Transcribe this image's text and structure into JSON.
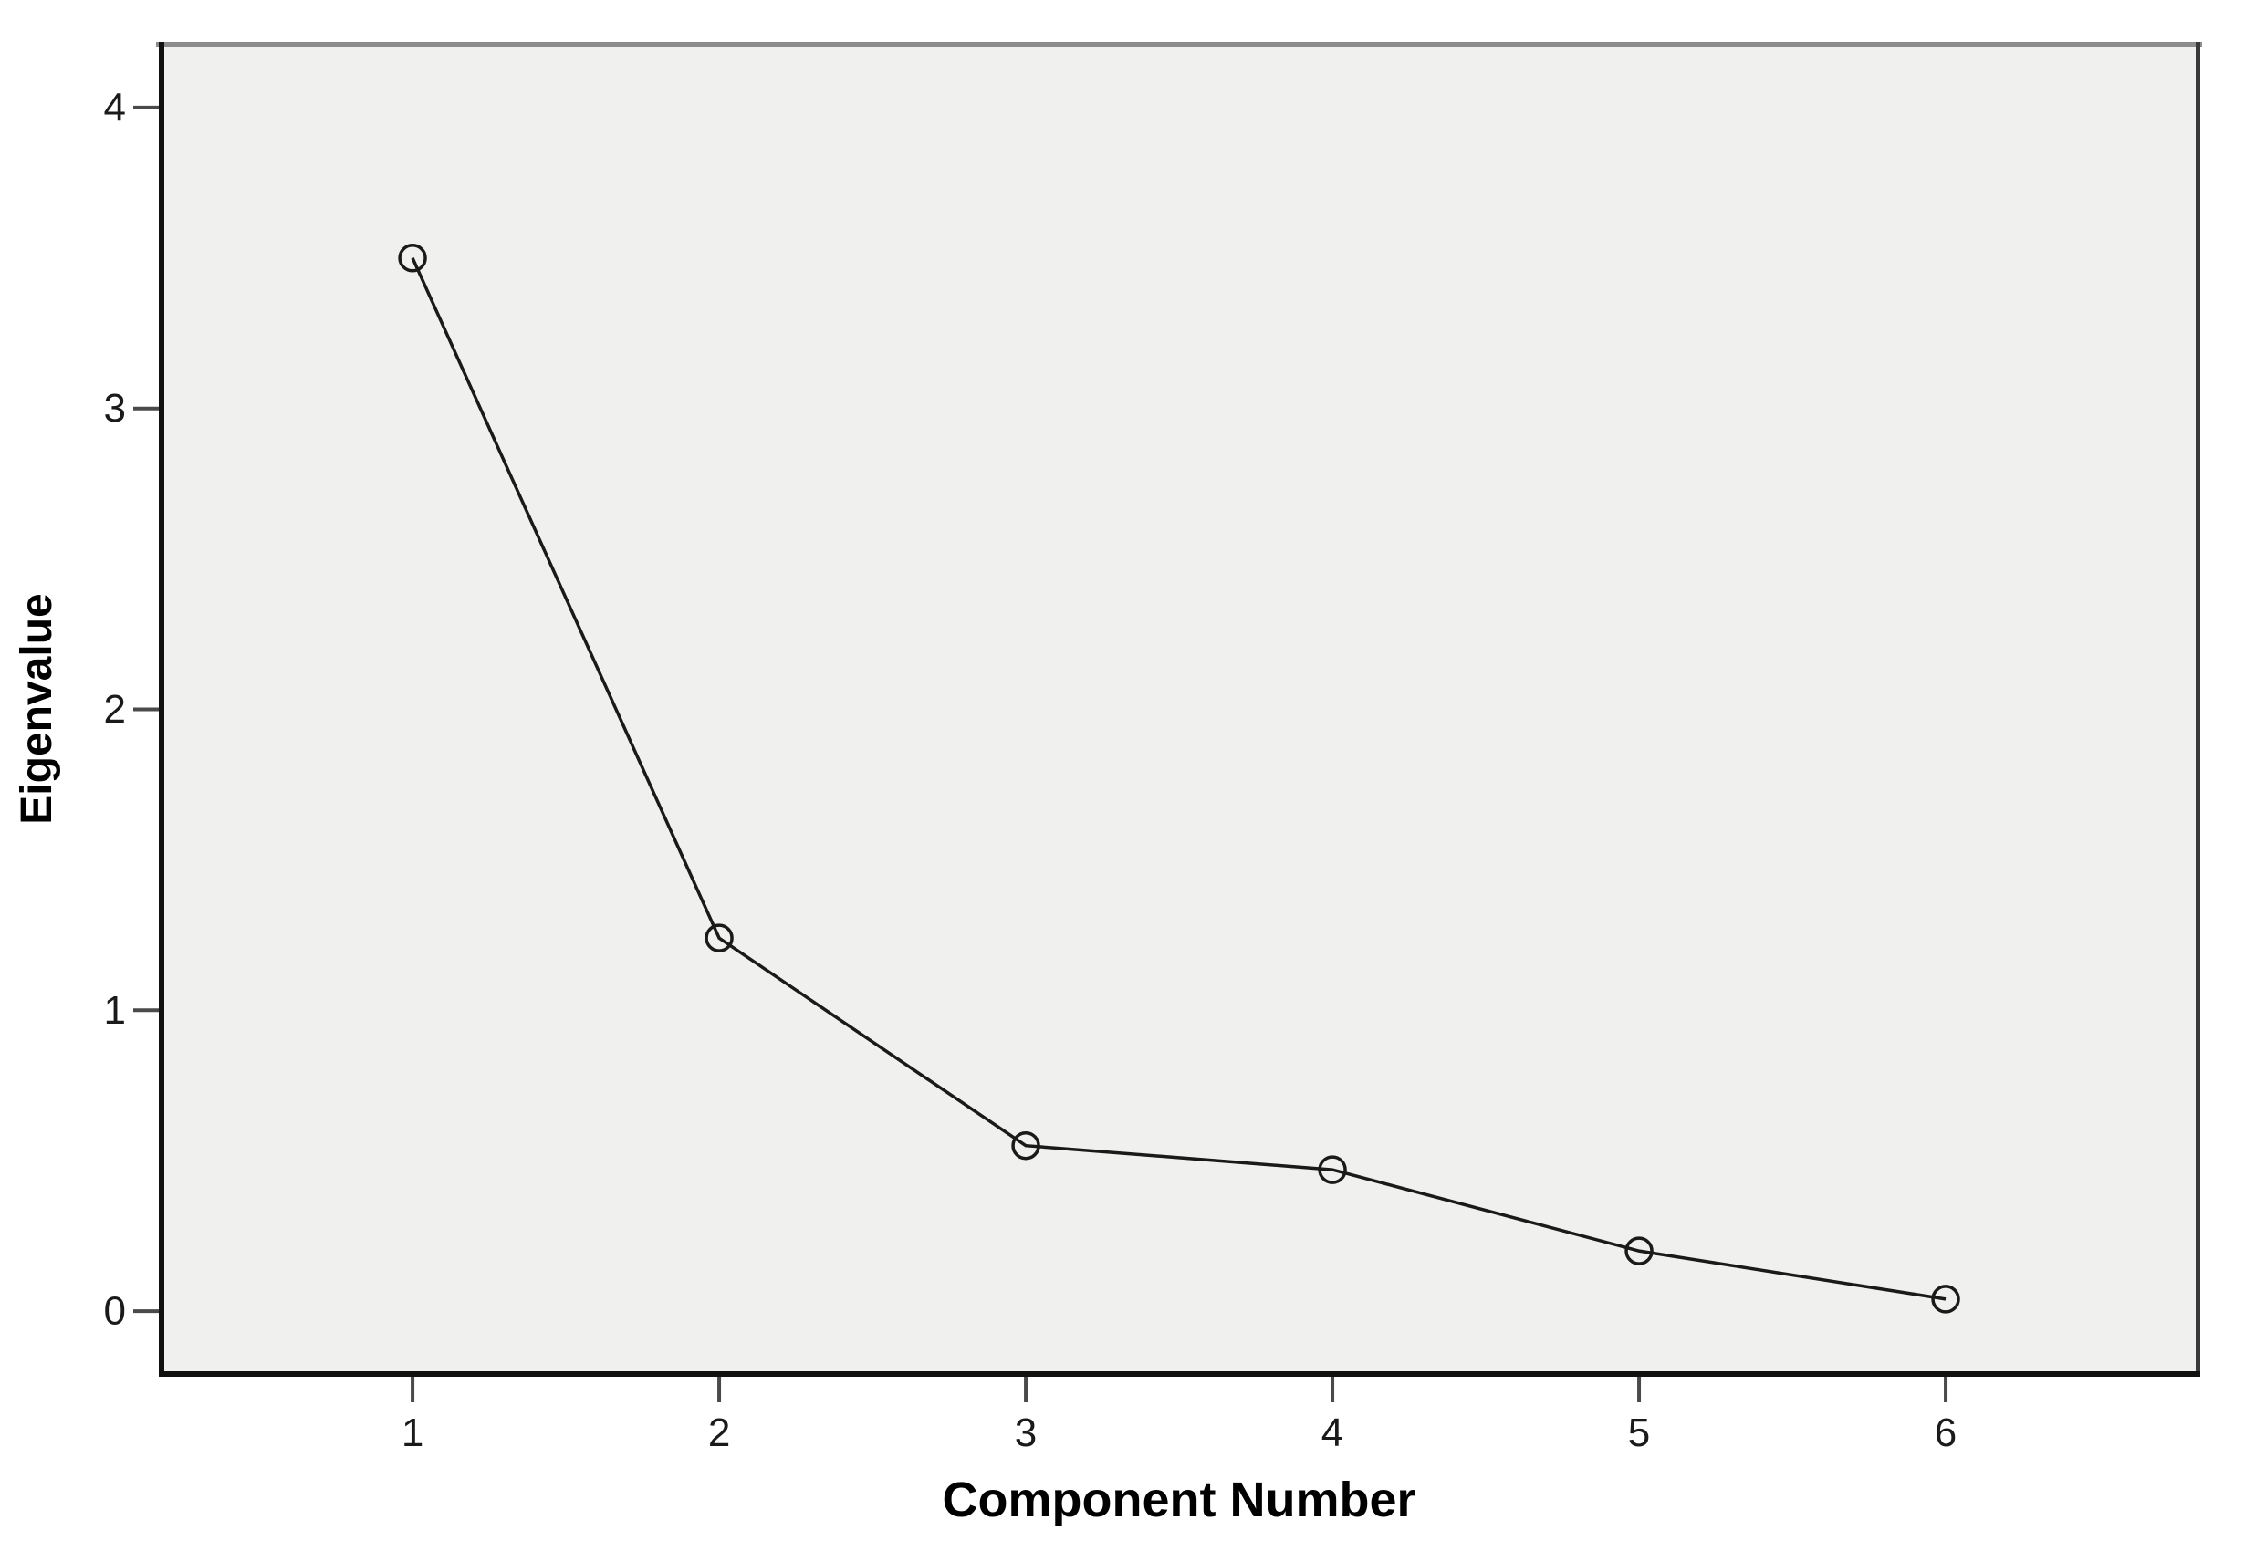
{
  "chart_data": {
    "type": "line",
    "title": "",
    "xlabel": "Component Number",
    "ylabel": "Eigenvalue",
    "categories": [
      1,
      2,
      3,
      4,
      5,
      6
    ],
    "x_tick_labels": [
      "1",
      "2",
      "3",
      "4",
      "5",
      "6"
    ],
    "series": [
      {
        "name": "Eigenvalue",
        "values": [
          3.5,
          1.24,
          0.55,
          0.47,
          0.2,
          0.04
        ]
      }
    ],
    "y_ticks": [
      0,
      1,
      2,
      3,
      4
    ],
    "y_tick_labels": [
      "0",
      "1",
      "2",
      "3",
      "4"
    ],
    "ylim": [
      -0.218,
      4.218
    ],
    "grid": false,
    "legend": "none",
    "marker": "open-circle",
    "colors": {
      "line": "#1a1a1a",
      "marker_stroke": "#1a1a1a",
      "plot_background": "#f0f0ee",
      "page_background": "#ffffff",
      "border_top": "#8c8c8c",
      "border_right": "#3a3a3a",
      "border_left": "#111111",
      "border_bottom": "#111111",
      "tick": "#4a4a4a",
      "tick_label": "#1a1a1a",
      "axis_label": "#000000"
    }
  }
}
